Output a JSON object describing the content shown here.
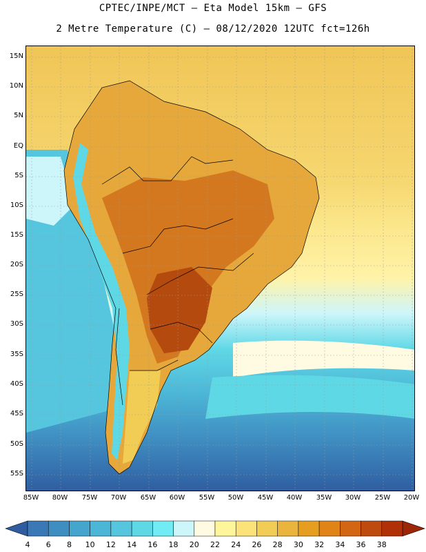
{
  "title": {
    "line1": "CPTEC/INPE/MCT –  Eta Model 15km – GFS",
    "line2": "2 Metre Temperature (C) – 08/12/2020 12UTC fct=126h"
  },
  "axes": {
    "lat_labels": [
      "15N",
      "10N",
      "5N",
      "EQ",
      "5S",
      "10S",
      "15S",
      "20S",
      "25S",
      "30S",
      "35S",
      "40S",
      "45S",
      "50S",
      "55S"
    ],
    "lon_labels": [
      "85W",
      "80W",
      "75W",
      "70W",
      "65W",
      "60W",
      "55W",
      "50W",
      "45W",
      "40W",
      "35W",
      "30W",
      "25W",
      "20W"
    ]
  },
  "colorbar": {
    "labels": [
      "4",
      "6",
      "8",
      "10",
      "12",
      "14",
      "16",
      "18",
      "20",
      "22",
      "24",
      "26",
      "28",
      "30",
      "32",
      "34",
      "36",
      "38"
    ],
    "colors": [
      "#3a78b6",
      "#3f8ec2",
      "#44a6cc",
      "#4cb6d6",
      "#55c6de",
      "#5fd8e6",
      "#72ecf4",
      "#cdf6fb",
      "#fffbe2",
      "#fff59a",
      "#fbe37a",
      "#f2cd55",
      "#eab53c",
      "#e69e20",
      "#e18418",
      "#d36614",
      "#bf4a0f",
      "#b03008"
    ],
    "low_color": "#2f5da0",
    "high_color": "#9c2606"
  }
}
